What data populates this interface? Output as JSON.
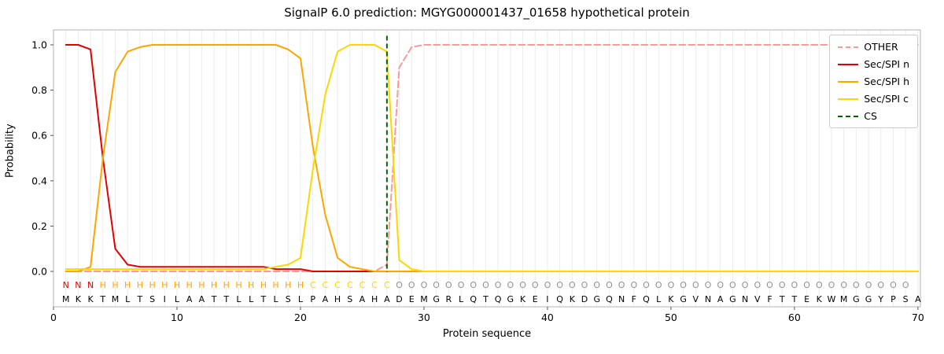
{
  "chart_data": {
    "type": "line",
    "title": "SignalP 6.0 prediction: MGYG000001437_01658 hypothetical protein",
    "xlabel": "Protein sequence",
    "ylabel": "Probability",
    "xlim": [
      0,
      70.2
    ],
    "ylim": [
      0,
      1.05
    ],
    "xticks": [
      0,
      10,
      20,
      30,
      40,
      50,
      60,
      70
    ],
    "yticks": [
      0.0,
      0.2,
      0.4,
      0.6,
      0.8,
      1.0
    ],
    "positions": {
      "start": 1,
      "end": 70
    },
    "grid": "vertical-per-residue",
    "legend_position": "upper-right",
    "sequence": "MKKTMLTSILAATTLLTLSLPAHSAHADEMGRLQTQGKEIQKDGQNFQLKGVNAGNVFTTEKWMGGYPSA",
    "region_labels": "NNNHHHHHHHHHHHHHHHHHCCCCCCCOOOOOOOOOOOOOOOOOOOOOOOOOOOOOOOOOOOOOOOOOO",
    "region_colors": {
      "N": "#e50000",
      "H": "#ffa500",
      "C": "#ffd700",
      "O": "#919191"
    },
    "series": [
      {
        "name": "OTHER",
        "color": "#ff9999",
        "dash": true,
        "values": [
          0,
          0,
          0,
          0,
          0,
          0,
          0,
          0,
          0,
          0,
          0,
          0,
          0,
          0,
          0,
          0,
          0,
          0,
          0,
          0,
          0,
          0,
          0,
          0,
          0,
          0,
          0.03,
          0.9,
          0.99,
          1,
          1,
          1,
          1,
          1,
          1,
          1,
          1,
          1,
          1,
          1,
          1,
          1,
          1,
          1,
          1,
          1,
          1,
          1,
          1,
          1,
          1,
          1,
          1,
          1,
          1,
          1,
          1,
          1,
          1,
          1,
          1,
          1,
          1,
          1,
          1,
          1,
          1,
          1,
          1,
          1
        ]
      },
      {
        "name": "Sec/SPI n",
        "color": "#e50000",
        "dash": false,
        "values": [
          1,
          1,
          0.98,
          0.5,
          0.1,
          0.03,
          0.02,
          0.02,
          0.02,
          0.02,
          0.02,
          0.02,
          0.02,
          0.02,
          0.02,
          0.02,
          0.02,
          0.01,
          0.01,
          0.01,
          0,
          0,
          0,
          0,
          0,
          0,
          0,
          0,
          0,
          0,
          0,
          0,
          0,
          0,
          0,
          0,
          0,
          0,
          0,
          0,
          0,
          0,
          0,
          0,
          0,
          0,
          0,
          0,
          0,
          0,
          0,
          0,
          0,
          0,
          0,
          0,
          0,
          0,
          0,
          0,
          0,
          0,
          0,
          0,
          0,
          0,
          0,
          0,
          0,
          0
        ]
      },
      {
        "name": "Sec/SPI h",
        "color": "#ffa500",
        "dash": false,
        "values": [
          0,
          0,
          0.02,
          0.5,
          0.88,
          0.97,
          0.99,
          1,
          1,
          1,
          1,
          1,
          1,
          1,
          1,
          1,
          1,
          1,
          0.98,
          0.94,
          0.55,
          0.25,
          0.06,
          0.02,
          0.01,
          0,
          0,
          0,
          0,
          0,
          0,
          0,
          0,
          0,
          0,
          0,
          0,
          0,
          0,
          0,
          0,
          0,
          0,
          0,
          0,
          0,
          0,
          0,
          0,
          0,
          0,
          0,
          0,
          0,
          0,
          0,
          0,
          0,
          0,
          0,
          0,
          0,
          0,
          0,
          0,
          0,
          0,
          0,
          0,
          0
        ]
      },
      {
        "name": "Sec/SPI c",
        "color": "#ffd700",
        "dash": false,
        "values": [
          0.01,
          0.01,
          0.01,
          0.01,
          0.01,
          0.01,
          0.01,
          0.01,
          0.01,
          0.01,
          0.01,
          0.01,
          0.01,
          0.01,
          0.01,
          0.01,
          0.01,
          0.02,
          0.03,
          0.06,
          0.45,
          0.78,
          0.97,
          1,
          1,
          1,
          0.97,
          0.05,
          0.01,
          0,
          0,
          0,
          0,
          0,
          0,
          0,
          0,
          0,
          0,
          0,
          0,
          0,
          0,
          0,
          0,
          0,
          0,
          0,
          0,
          0,
          0,
          0,
          0,
          0,
          0,
          0,
          0,
          0,
          0,
          0,
          0,
          0,
          0,
          0,
          0,
          0,
          0,
          0,
          0,
          0
        ]
      }
    ],
    "cs_position": 27,
    "cs_color": "#006400",
    "legend": [
      {
        "label": "OTHER",
        "color": "#ff9999",
        "dash": true
      },
      {
        "label": "Sec/SPI n",
        "color": "#e50000",
        "dash": false
      },
      {
        "label": "Sec/SPI h",
        "color": "#ffa500",
        "dash": false
      },
      {
        "label": "Sec/SPI c",
        "color": "#ffd700",
        "dash": false
      },
      {
        "label": "CS",
        "color": "#006400",
        "dash": true
      }
    ]
  }
}
